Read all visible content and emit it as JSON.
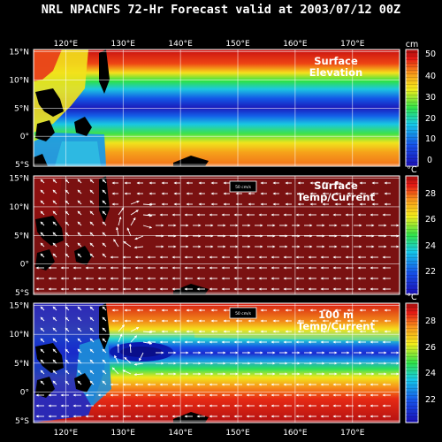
{
  "title": "NRL NPACNFS 72-Hr Forecast valid at 2003/07/12 00Z",
  "lon_labels": [
    "120°E",
    "130°E",
    "140°E",
    "150°E",
    "160°E",
    "170°E"
  ],
  "lon_values": [
    120,
    130,
    140,
    150,
    160,
    170
  ],
  "lat_labels": [
    "15°N",
    "10°N",
    "5°N",
    "0°",
    "5°S"
  ],
  "lat_values": [
    15,
    10,
    5,
    0,
    -5
  ],
  "panels": [
    {
      "id": "elevation",
      "label": [
        "Surface",
        "Elevation"
      ],
      "unit": "cm",
      "colorbar_labels": [
        "50",
        "40",
        "30",
        "20",
        "10",
        "0"
      ],
      "colors": {
        "low": "#0a1dbd",
        "mid": "#1fd0e0",
        "high": "#d81010"
      }
    },
    {
      "id": "surface-temp-current",
      "label": [
        "Surface",
        "Temp/Current"
      ],
      "unit": "°C",
      "colorbar_labels": [
        "28",
        "26",
        "24",
        "22"
      ],
      "scale_vector": "50 cm/s",
      "colors": {
        "base": "#7a1111"
      }
    },
    {
      "id": "temp-current-100m",
      "label": [
        "100 m",
        "Temp/Current"
      ],
      "unit": "°C",
      "colorbar_labels": [
        "28",
        "26",
        "24",
        "22"
      ],
      "scale_vector": "50 cm/s",
      "colors": {
        "warm": "#d2150f",
        "cool": "#0a2fd0"
      }
    }
  ]
}
